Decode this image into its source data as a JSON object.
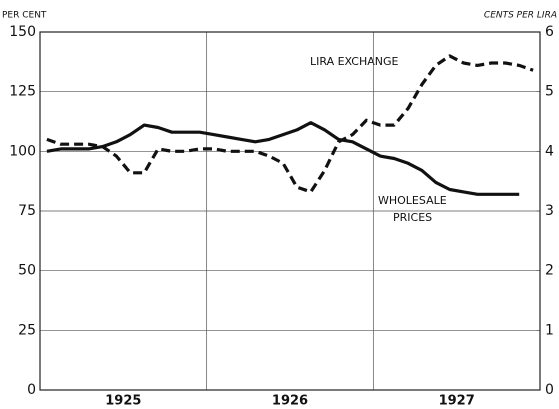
{
  "chart_data": {
    "type": "line",
    "ylabel": "PER CENT",
    "y2label": "CENTS PER LIRA",
    "annotations": [
      "LIRA EXCHANGE",
      "WHOLESALE",
      "PRICES"
    ],
    "categories": [
      null,
      null,
      null,
      null,
      null,
      null,
      "1925",
      null,
      null,
      null,
      null,
      null,
      null,
      null,
      null,
      null,
      null,
      null,
      "1926",
      null,
      null,
      null,
      null,
      null,
      null,
      null,
      null,
      null,
      null,
      null,
      "1927",
      null,
      null,
      null,
      null,
      null
    ],
    "series": [
      {
        "color": "#111111",
        "dash": false,
        "values": [
          100,
          101,
          101,
          101,
          102,
          104,
          107,
          111,
          110,
          108,
          108,
          108,
          107,
          106,
          105,
          104,
          105,
          107,
          109,
          112,
          109,
          105,
          104,
          101,
          98,
          97,
          95,
          92,
          87,
          84,
          83,
          82,
          82,
          82,
          82,
          null
        ]
      },
      {
        "color": "#111111",
        "dash": true,
        "axis": "y2",
        "values": [
          4.2,
          4.12,
          4.12,
          4.12,
          4.08,
          3.92,
          3.64,
          3.64,
          4.04,
          4.0,
          4.0,
          4.04,
          4.04,
          4.0,
          4.0,
          4.0,
          3.92,
          3.8,
          3.4,
          3.32,
          3.68,
          4.16,
          4.28,
          4.52,
          4.44,
          4.44,
          4.72,
          5.12,
          5.44,
          5.6,
          5.48,
          5.44,
          5.48,
          5.48,
          5.44,
          5.36
        ]
      }
    ],
    "ylim": [
      0,
      150
    ],
    "yticks": [
      0,
      25,
      50,
      75,
      100,
      125,
      150
    ],
    "y2lim": [
      0,
      6
    ],
    "y2ticks": [
      0,
      1,
      2,
      3,
      4,
      5,
      6
    ],
    "grid": true
  }
}
